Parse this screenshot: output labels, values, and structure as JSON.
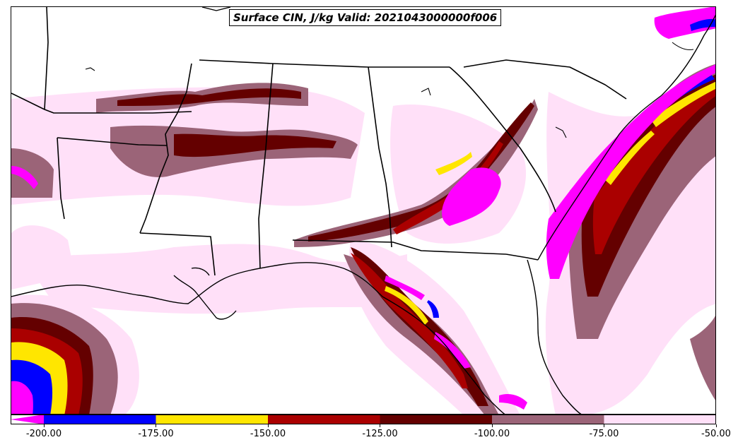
{
  "title": "Surface CIN, J/kg Valid: 2021043000000f006",
  "colorbar": {
    "ticks": [
      "-200.00",
      "-175.00",
      "-150.00",
      "-125.00",
      "-100.00",
      "-75.00",
      "-50.00"
    ],
    "bins": [
      {
        "from": -200,
        "to": -175,
        "color": "#0000ff"
      },
      {
        "from": -175,
        "to": -150,
        "color": "#ffe600"
      },
      {
        "from": -150,
        "to": -125,
        "color": "#aa0000"
      },
      {
        "from": -125,
        "to": -100,
        "color": "#640000"
      },
      {
        "from": -100,
        "to": -75,
        "color": "#9b6478"
      },
      {
        "from": -75,
        "to": -50,
        "color": "#ffe0f8"
      }
    ],
    "under_color": "#ff00ff",
    "extend": "min"
  },
  "colors": {
    "very_light": "#ffe0f8",
    "mauve": "#9b6478",
    "dark_red": "#640000",
    "red": "#aa0000",
    "yellow": "#ffe600",
    "blue": "#0000ff",
    "magenta": "#ff00ff",
    "borders": "#000000"
  }
}
